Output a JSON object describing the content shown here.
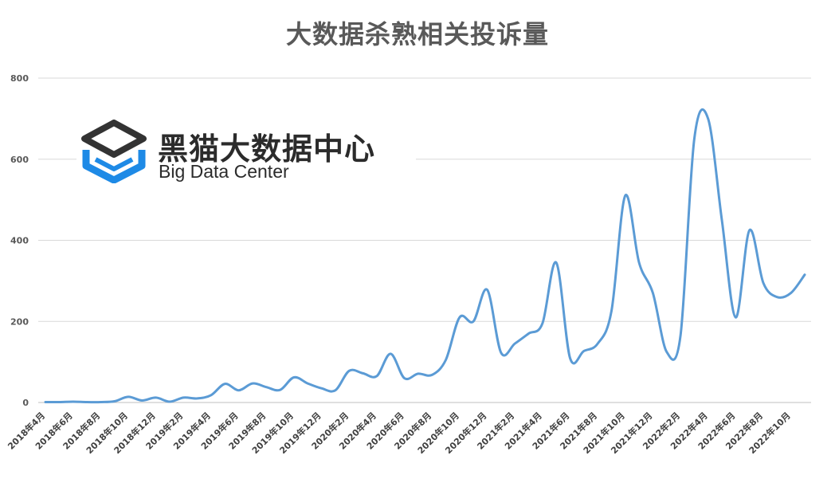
{
  "chart_data": {
    "type": "line",
    "title": "大数据杀熟相关投诉量",
    "xlabel": "",
    "ylabel": "",
    "ylim": [
      0,
      800
    ],
    "yticks": [
      0,
      200,
      400,
      600,
      800
    ],
    "grid": true,
    "series_color": "#5b9bd5",
    "x": [
      "2018年4月",
      "2018年5月",
      "2018年6月",
      "2018年7月",
      "2018年8月",
      "2018年9月",
      "2018年10月",
      "2018年11月",
      "2018年12月",
      "2019年1月",
      "2019年2月",
      "2019年3月",
      "2019年4月",
      "2019年5月",
      "2019年6月",
      "2019年7月",
      "2019年8月",
      "2019年9月",
      "2019年10月",
      "2019年11月",
      "2019年12月",
      "2020年1月",
      "2020年2月",
      "2020年3月",
      "2020年4月",
      "2020年5月",
      "2020年6月",
      "2020年7月",
      "2020年8月",
      "2020年9月",
      "2020年10月",
      "2020年11月",
      "2020年12月",
      "2021年1月",
      "2021年2月",
      "2021年3月",
      "2021年4月",
      "2021年5月",
      "2021年6月",
      "2021年7月",
      "2021年8月",
      "2021年9月",
      "2021年10月",
      "2021年11月",
      "2021年12月",
      "2022年1月",
      "2022年2月",
      "2022年3月",
      "2022年4月",
      "2022年5月",
      "2022年6月",
      "2022年7月",
      "2022年8月",
      "2022年9月",
      "2022年10月",
      "2022年11月"
    ],
    "xtick_labels": [
      "2018年4月",
      "2018年6月",
      "2018年8月",
      "2018年10月",
      "2018年12月",
      "2019年2月",
      "2019年4月",
      "2019年6月",
      "2019年8月",
      "2019年10月",
      "2019年12月",
      "2020年2月",
      "2020年4月",
      "2020年6月",
      "2020年8月",
      "2020年10月",
      "2020年12月",
      "2021年2月",
      "2021年4月",
      "2021年6月",
      "2021年8月",
      "2021年10月",
      "2021年12月",
      "2022年2月",
      "2022年4月",
      "2022年6月",
      "2022年8月",
      "2022年10月"
    ],
    "series": [
      {
        "values": [
          1,
          1,
          2,
          1,
          1,
          3,
          14,
          5,
          12,
          2,
          12,
          10,
          18,
          46,
          30,
          47,
          38,
          31,
          62,
          47,
          35,
          30,
          78,
          72,
          65,
          120,
          60,
          71,
          68,
          105,
          210,
          200,
          278,
          123,
          145,
          170,
          195,
          345,
          110,
          127,
          145,
          225,
          510,
          345,
          270,
          125,
          165,
          650,
          700,
          450,
          210,
          425,
          295,
          260,
          270,
          315
        ]
      }
    ]
  },
  "logo": {
    "name": "黑猫大数据中心",
    "subtitle": "Big Data Center",
    "icon": "graduation-cap-box-icon"
  }
}
